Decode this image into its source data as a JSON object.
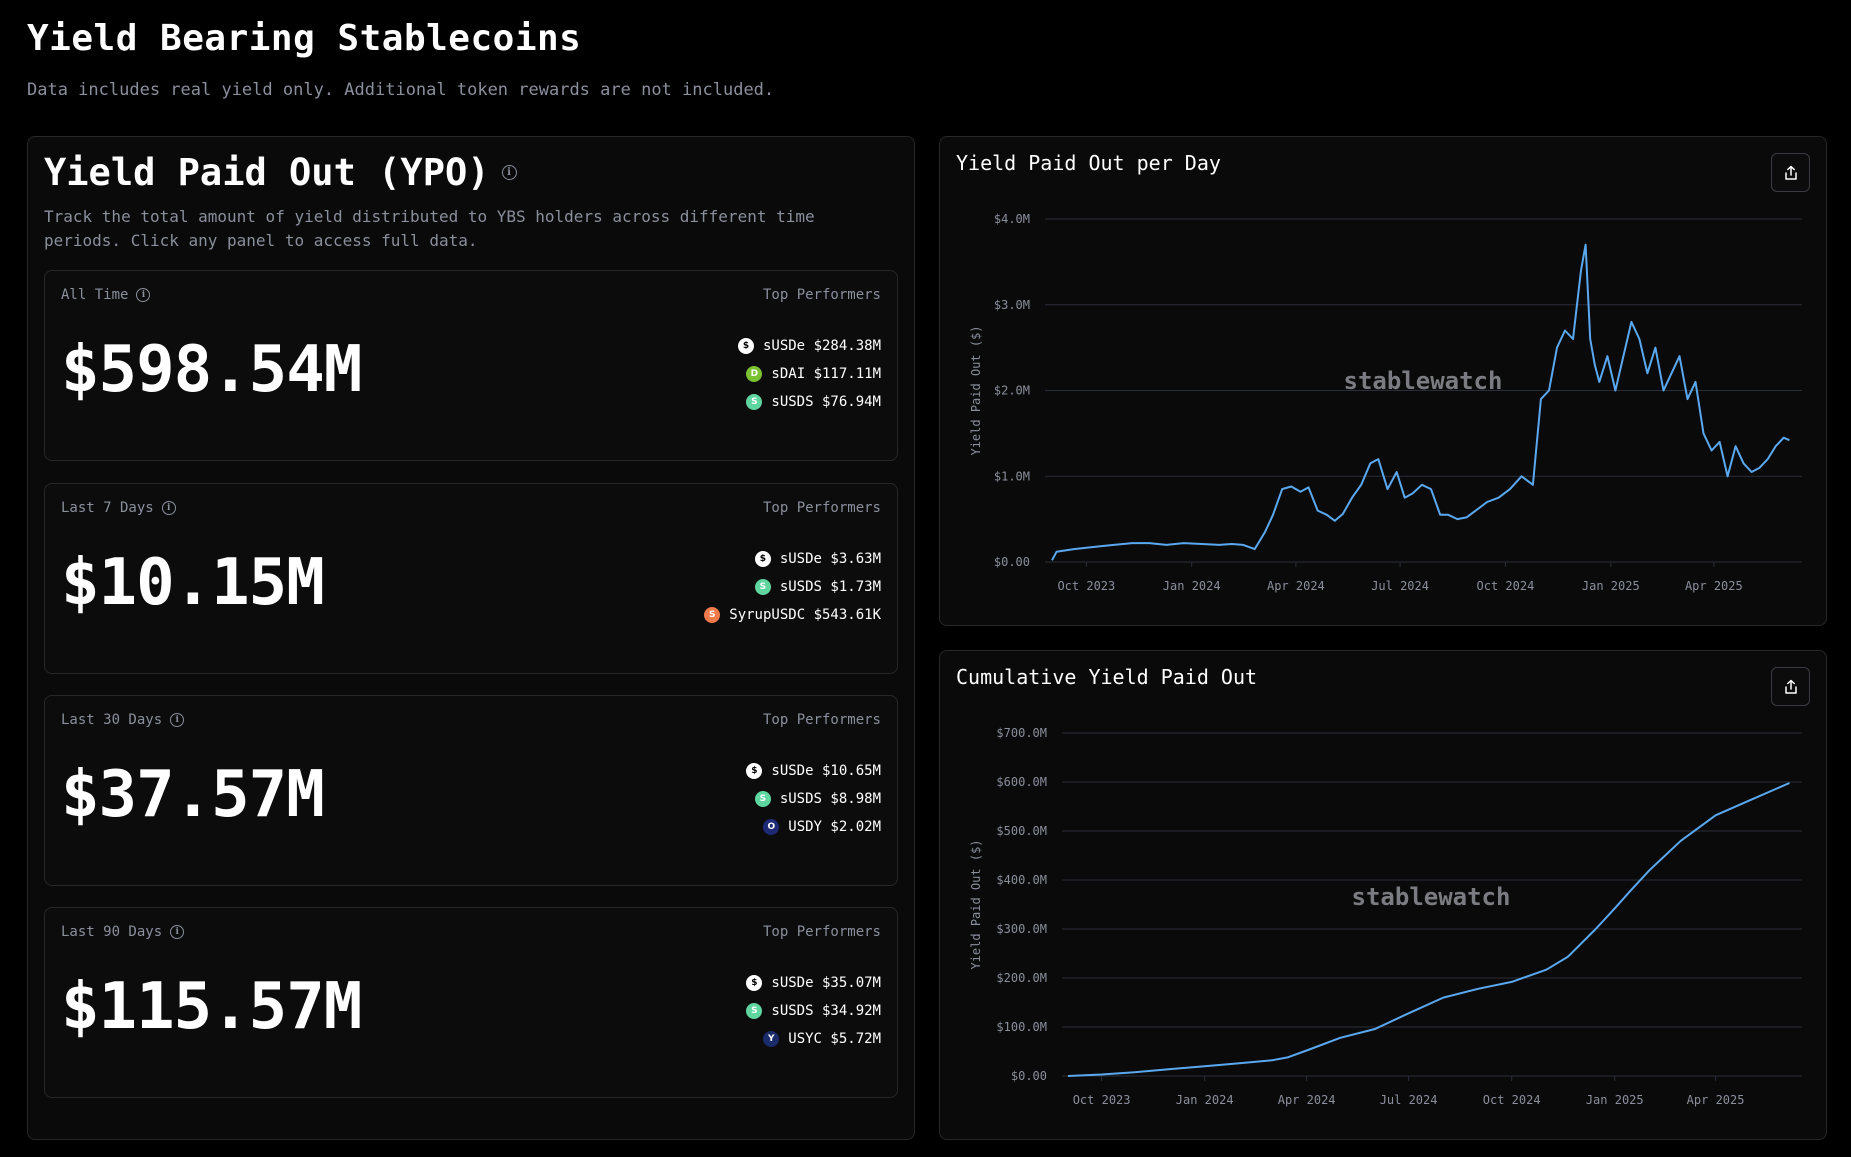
{
  "page": {
    "title": "Yield Bearing Stablecoins",
    "subtitle": "Data includes real yield only. Additional token rewards are not included."
  },
  "ypo": {
    "title": "Yield Paid Out (YPO)",
    "description": "Track the total amount of yield distributed to YBS holders across different time periods. Click any panel to access full data.",
    "top_performers_label": "Top Performers",
    "cards": [
      {
        "label": "All Time",
        "value": "$598.54M",
        "performers": [
          {
            "name": "sUSDe",
            "amount": "$284.38M",
            "icon": "susde-icon",
            "color": "#ffffff",
            "glyph": "$"
          },
          {
            "name": "sDAI",
            "amount": "$117.11M",
            "icon": "sdai-icon",
            "color": "#7ac231",
            "glyph": "D"
          },
          {
            "name": "sUSDS",
            "amount": "$76.94M",
            "icon": "susds-icon",
            "color": "#5fd6a0",
            "glyph": "S"
          }
        ]
      },
      {
        "label": "Last 7 Days",
        "value": "$10.15M",
        "performers": [
          {
            "name": "sUSDe",
            "amount": "$3.63M",
            "icon": "susde-icon",
            "color": "#ffffff",
            "glyph": "$"
          },
          {
            "name": "sUSDS",
            "amount": "$1.73M",
            "icon": "susds-icon",
            "color": "#5fd6a0",
            "glyph": "S"
          },
          {
            "name": "SyrupUSDC",
            "amount": "$543.61K",
            "icon": "syrupusdc-icon",
            "color": "#f07a4a",
            "glyph": "S"
          }
        ]
      },
      {
        "label": "Last 30 Days",
        "value": "$37.57M",
        "performers": [
          {
            "name": "sUSDe",
            "amount": "$10.65M",
            "icon": "susde-icon",
            "color": "#ffffff",
            "glyph": "$"
          },
          {
            "name": "sUSDS",
            "amount": "$8.98M",
            "icon": "susds-icon",
            "color": "#5fd6a0",
            "glyph": "S"
          },
          {
            "name": "USDY",
            "amount": "$2.02M",
            "icon": "usdy-icon",
            "color": "#1e2a78",
            "glyph": "O"
          }
        ]
      },
      {
        "label": "Last 90 Days",
        "value": "$115.57M",
        "performers": [
          {
            "name": "sUSDe",
            "amount": "$35.07M",
            "icon": "susde-icon",
            "color": "#ffffff",
            "glyph": "$"
          },
          {
            "name": "sUSDS",
            "amount": "$34.92M",
            "icon": "susds-icon",
            "color": "#5fd6a0",
            "glyph": "S"
          },
          {
            "name": "USYC",
            "amount": "$5.72M",
            "icon": "usyc-icon",
            "color": "#1a2b6a",
            "glyph": "Y"
          }
        ]
      }
    ]
  },
  "colors": {
    "line": "#5aa9f0",
    "grid": "#2a2d3a",
    "tick_text": "#8a8f9c",
    "watermark": "#8f9097"
  },
  "chart_data": [
    {
      "type": "line",
      "title": "Yield Paid Out per Day",
      "ylabel": "Yield Paid Out ($)",
      "watermark": "stablewatch",
      "ylim": [
        0,
        4.0
      ],
      "y_unit": "$M",
      "ytick_labels": [
        "$0.00",
        "$1.0M",
        "$2.0M",
        "$3.0M",
        "$4.0M"
      ],
      "xtick_labels": [
        "Oct 2023",
        "Jan 2024",
        "Apr 2024",
        "Jul 2024",
        "Oct 2024",
        "Jan 2025",
        "Apr 2025"
      ],
      "xlim": [
        "2023-09-01",
        "2025-06-10"
      ],
      "grid": true,
      "series": [
        {
          "x": [
            "2023-09-01",
            "2023-09-05",
            "2023-09-20",
            "2023-10-10",
            "2023-10-25",
            "2023-11-10",
            "2023-11-25",
            "2023-12-10",
            "2023-12-25",
            "2024-01-10",
            "2024-01-25",
            "2024-02-05",
            "2024-02-15",
            "2024-02-25",
            "2024-03-05",
            "2024-03-12",
            "2024-03-20",
            "2024-03-28",
            "2024-04-05",
            "2024-04-12",
            "2024-04-20",
            "2024-04-28",
            "2024-05-05",
            "2024-05-12",
            "2024-05-20",
            "2024-05-28",
            "2024-06-05",
            "2024-06-12",
            "2024-06-20",
            "2024-06-28",
            "2024-07-05",
            "2024-07-12",
            "2024-07-20",
            "2024-07-28",
            "2024-08-05",
            "2024-08-12",
            "2024-08-20",
            "2024-08-28",
            "2024-09-05",
            "2024-09-15",
            "2024-09-25",
            "2024-10-05",
            "2024-10-15",
            "2024-10-25",
            "2024-11-01",
            "2024-11-08",
            "2024-11-15",
            "2024-11-22",
            "2024-11-29",
            "2024-12-06",
            "2024-12-10",
            "2024-12-14",
            "2024-12-18",
            "2024-12-22",
            "2024-12-29",
            "2025-01-05",
            "2025-01-12",
            "2025-01-19",
            "2025-01-26",
            "2025-02-02",
            "2025-02-09",
            "2025-02-16",
            "2025-02-23",
            "2025-03-02",
            "2025-03-09",
            "2025-03-16",
            "2025-03-23",
            "2025-03-30",
            "2025-04-06",
            "2025-04-13",
            "2025-04-20",
            "2025-04-27",
            "2025-05-04",
            "2025-05-11",
            "2025-05-18",
            "2025-05-25",
            "2025-06-01",
            "2025-06-06"
          ],
          "values": [
            0.02,
            0.12,
            0.15,
            0.18,
            0.2,
            0.22,
            0.22,
            0.2,
            0.22,
            0.21,
            0.2,
            0.21,
            0.2,
            0.15,
            0.35,
            0.55,
            0.85,
            0.88,
            0.82,
            0.87,
            0.6,
            0.55,
            0.48,
            0.56,
            0.75,
            0.9,
            1.15,
            1.2,
            0.85,
            1.05,
            0.75,
            0.8,
            0.9,
            0.85,
            0.55,
            0.55,
            0.5,
            0.52,
            0.6,
            0.7,
            0.75,
            0.85,
            1.0,
            0.9,
            1.9,
            2.0,
            2.5,
            2.7,
            2.6,
            3.4,
            3.7,
            2.6,
            2.3,
            2.1,
            2.4,
            2.0,
            2.4,
            2.8,
            2.6,
            2.2,
            2.5,
            2.0,
            2.2,
            2.4,
            1.9,
            2.1,
            1.5,
            1.3,
            1.4,
            1.0,
            1.35,
            1.15,
            1.05,
            1.1,
            1.2,
            1.35,
            1.45,
            1.42
          ]
        }
      ]
    },
    {
      "type": "line",
      "title": "Cumulative Yield Paid Out",
      "ylabel": "Yield Paid Out ($)",
      "watermark": "stablewatch",
      "ylim": [
        0,
        700
      ],
      "y_unit": "$M",
      "ytick_labels": [
        "$0.00",
        "$100.0M",
        "$200.0M",
        "$300.0M",
        "$400.0M",
        "$500.0M",
        "$600.0M",
        "$700.0M"
      ],
      "xtick_labels": [
        "Oct 2023",
        "Jan 2024",
        "Apr 2024",
        "Jul 2024",
        "Oct 2024",
        "Jan 2025",
        "Apr 2025"
      ],
      "xlim": [
        "2023-09-01",
        "2025-06-10"
      ],
      "grid": true,
      "series": [
        {
          "x": [
            "2023-09-01",
            "2023-10-01",
            "2023-11-01",
            "2023-12-01",
            "2024-01-01",
            "2024-02-01",
            "2024-03-01",
            "2024-03-15",
            "2024-04-01",
            "2024-05-01",
            "2024-06-01",
            "2024-07-01",
            "2024-08-01",
            "2024-09-01",
            "2024-10-01",
            "2024-11-01",
            "2024-11-20",
            "2024-12-01",
            "2024-12-15",
            "2025-01-01",
            "2025-01-15",
            "2025-02-01",
            "2025-03-01",
            "2025-04-01",
            "2025-05-01",
            "2025-06-06"
          ],
          "values": [
            0,
            3,
            8,
            14,
            20,
            26,
            32,
            38,
            52,
            78,
            96,
            128,
            160,
            178,
            192,
            217,
            243,
            268,
            300,
            342,
            378,
            420,
            480,
            532,
            562,
            598
          ]
        }
      ]
    }
  ]
}
